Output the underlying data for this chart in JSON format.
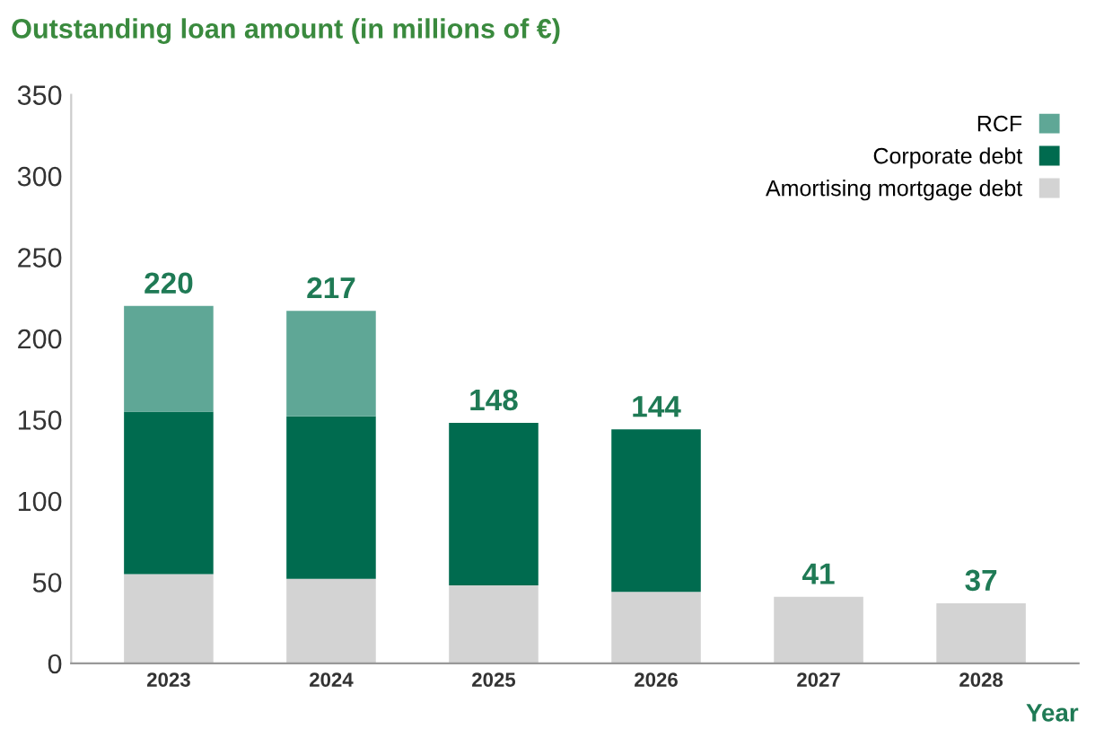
{
  "chart_data": {
    "type": "bar",
    "title": "Outstanding loan amount (in millions of €)",
    "xlabel": "Year",
    "categories": [
      "2023",
      "2024",
      "2025",
      "2026",
      "2027",
      "2028"
    ],
    "stacked": true,
    "series": [
      {
        "name": "Amortising mortgage debt",
        "color": "#d3d3d3",
        "values": [
          55,
          52,
          48,
          44,
          41,
          37
        ]
      },
      {
        "name": "Corporate debt",
        "color": "#006b4f",
        "values": [
          100,
          100,
          100,
          100,
          null,
          null
        ]
      },
      {
        "name": "RCF",
        "color": "#5fa796",
        "values": [
          65,
          65,
          null,
          null,
          null,
          null
        ]
      }
    ],
    "totals": [
      "220",
      "217",
      "148",
      "144",
      "41",
      "37"
    ],
    "ylim": [
      0,
      350
    ],
    "yticks": [
      0,
      50,
      100,
      150,
      200,
      250,
      300,
      350
    ],
    "grid": false,
    "legend": "top right"
  }
}
